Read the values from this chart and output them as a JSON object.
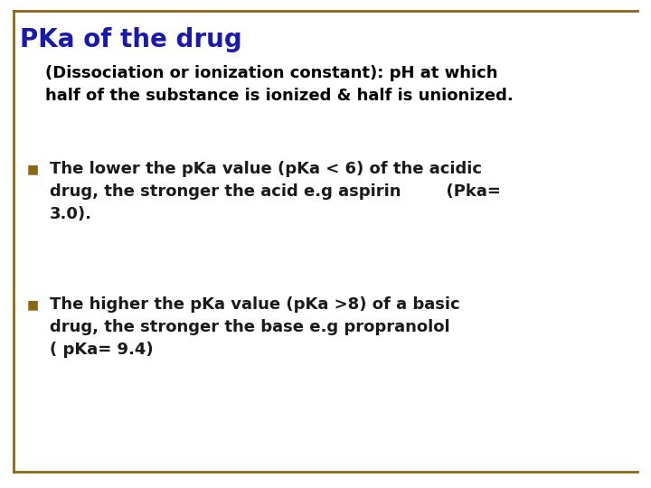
{
  "title": "PKa of the drug",
  "title_color": "#1a1aaa",
  "title_fontsize": 20,
  "subtitle": "(Dissociation or ionization constant): pH at which\nhalf of the substance is ionized & half is unionized.",
  "subtitle_fontsize": 13,
  "subtitle_color": "#000000",
  "bullet1_line1": "The lower the pKa value (pKa < 6) of the acidic",
  "bullet1_line2": "drug, the stronger the acid e.g aspirin        (Pka=",
  "bullet1_line3": "3.0).",
  "bullet2_line1": "The higher the pKa value (pKa >8) of a basic",
  "bullet2_line2": "drug, the stronger the base e.g propranolol",
  "bullet2_line3": "( pKa= 9.4)",
  "bullet_color": "#1a1a1a",
  "bullet_marker_color": "#8B6914",
  "bullet_fontsize": 13,
  "background_color": "#FFFFFF",
  "border_color": "#8B6914"
}
